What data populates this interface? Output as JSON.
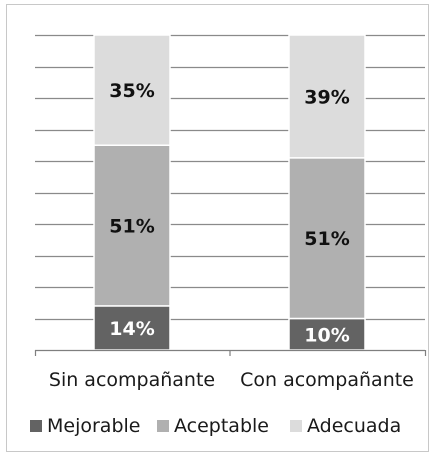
{
  "chart_data": {
    "type": "bar",
    "stacked": true,
    "categories": [
      "Sin acompañante",
      "Con acompañante"
    ],
    "series": [
      {
        "name": "Mejorable",
        "values": [
          14,
          10
        ],
        "labels": [
          "14%",
          "10%"
        ],
        "color": "#636363"
      },
      {
        "name": "Aceptable",
        "values": [
          51,
          51
        ],
        "labels": [
          "51%",
          "51%"
        ],
        "color": "#b0b0b0"
      },
      {
        "name": "Adecuada",
        "values": [
          35,
          39
        ],
        "labels": [
          "35%",
          "39%"
        ],
        "color": "#dcdcdc"
      }
    ],
    "ylim": [
      0,
      100
    ],
    "gridlines": 10,
    "legend_position": "bottom",
    "label_colors": {
      "Mejorable": "#ffffff",
      "Aceptable": "#111111",
      "Adecuada": "#111111"
    },
    "axis_color": "#7f7f7f",
    "grid_color": "#8a8a8a"
  }
}
